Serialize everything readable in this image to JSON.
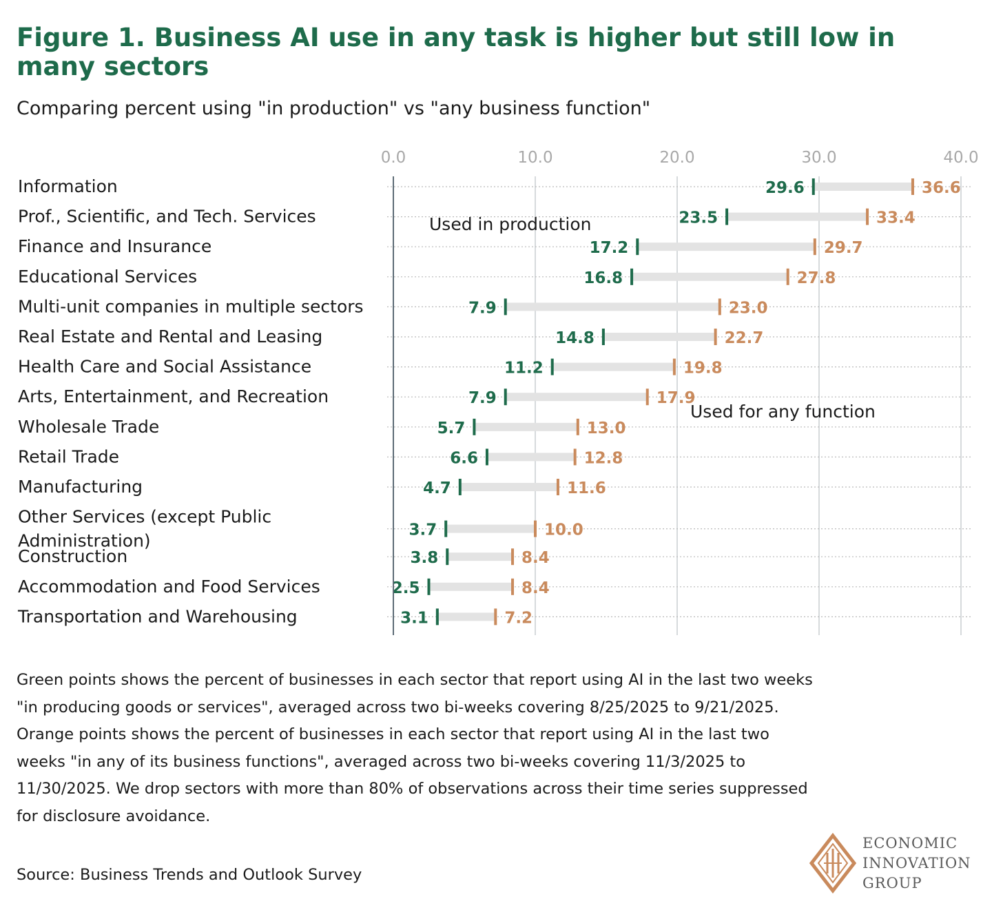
{
  "title": "Figure 1. Business AI use in any task is higher but still low in many sectors",
  "subtitle": "Comparing percent using \"in production\" vs \"any business function\"",
  "note": "Green points shows the percent of businesses in each sector that report using AI in the last two weeks \"in producing goods or services\", averaged across two bi-weeks covering 8/25/2025 to 9/21/2025.  Orange points shows the percent of businesses in each sector that report using AI in the last two weeks \"in any of its business functions\", averaged across two bi-weeks covering 11/3/2025 to 11/30/2025. We drop sectors with more than 80% of observations across their time series suppressed for disclosure avoidance.",
  "source": "Source: Business Trends and Outlook Survey",
  "logo": {
    "line1": "ECONOMIC",
    "line2": "INNOVATION",
    "line3": "GROUP"
  },
  "colors": {
    "production": "#1e6b4b",
    "any_function": "#c98a5c",
    "range_bar": "#e3e3e3",
    "gridline": "#c8cdd1",
    "tick_label": "#a8a8a8"
  },
  "chart_data": {
    "type": "dumbbell",
    "xlim": [
      0,
      40
    ],
    "xticks": [
      0,
      10,
      20,
      30,
      40
    ],
    "tick_labels": [
      "0.0",
      "10.0",
      "20.0",
      "30.0",
      "40.0"
    ],
    "annotations": {
      "production": "Used in production",
      "any_function": "Used for any function"
    },
    "series": [
      {
        "name": "Used in production",
        "key": "production"
      },
      {
        "name": "Used for any function",
        "key": "any_function"
      }
    ],
    "rows": [
      {
        "category": "Information",
        "production": 29.6,
        "any_function": 36.6
      },
      {
        "category": "Prof., Scientific, and Tech. Services",
        "production": 23.5,
        "any_function": 33.4
      },
      {
        "category": "Finance and Insurance",
        "production": 17.2,
        "any_function": 29.7
      },
      {
        "category": "Educational Services",
        "production": 16.8,
        "any_function": 27.8
      },
      {
        "category": "Multi-unit companies in multiple sectors",
        "production": 7.9,
        "any_function": 23.0
      },
      {
        "category": "Real Estate and Rental and Leasing",
        "production": 14.8,
        "any_function": 22.7
      },
      {
        "category": "Health Care and Social Assistance",
        "production": 11.2,
        "any_function": 19.8
      },
      {
        "category": "Arts, Entertainment, and Recreation",
        "production": 7.9,
        "any_function": 17.9
      },
      {
        "category": "Wholesale Trade",
        "production": 5.7,
        "any_function": 13.0
      },
      {
        "category": "Retail Trade",
        "production": 6.6,
        "any_function": 12.8
      },
      {
        "category": "Manufacturing",
        "production": 4.7,
        "any_function": 11.6
      },
      {
        "category": "Other Services (except Public Administration)",
        "category_lines": [
          "Other Services (except Public",
          "Administration)"
        ],
        "production": 3.7,
        "any_function": 10.0
      },
      {
        "category": "Construction",
        "production": 3.8,
        "any_function": 8.4
      },
      {
        "category": "Accommodation and Food Services",
        "production": 2.5,
        "any_function": 8.4
      },
      {
        "category": "Transportation and Warehousing",
        "production": 3.1,
        "any_function": 7.2
      }
    ]
  }
}
